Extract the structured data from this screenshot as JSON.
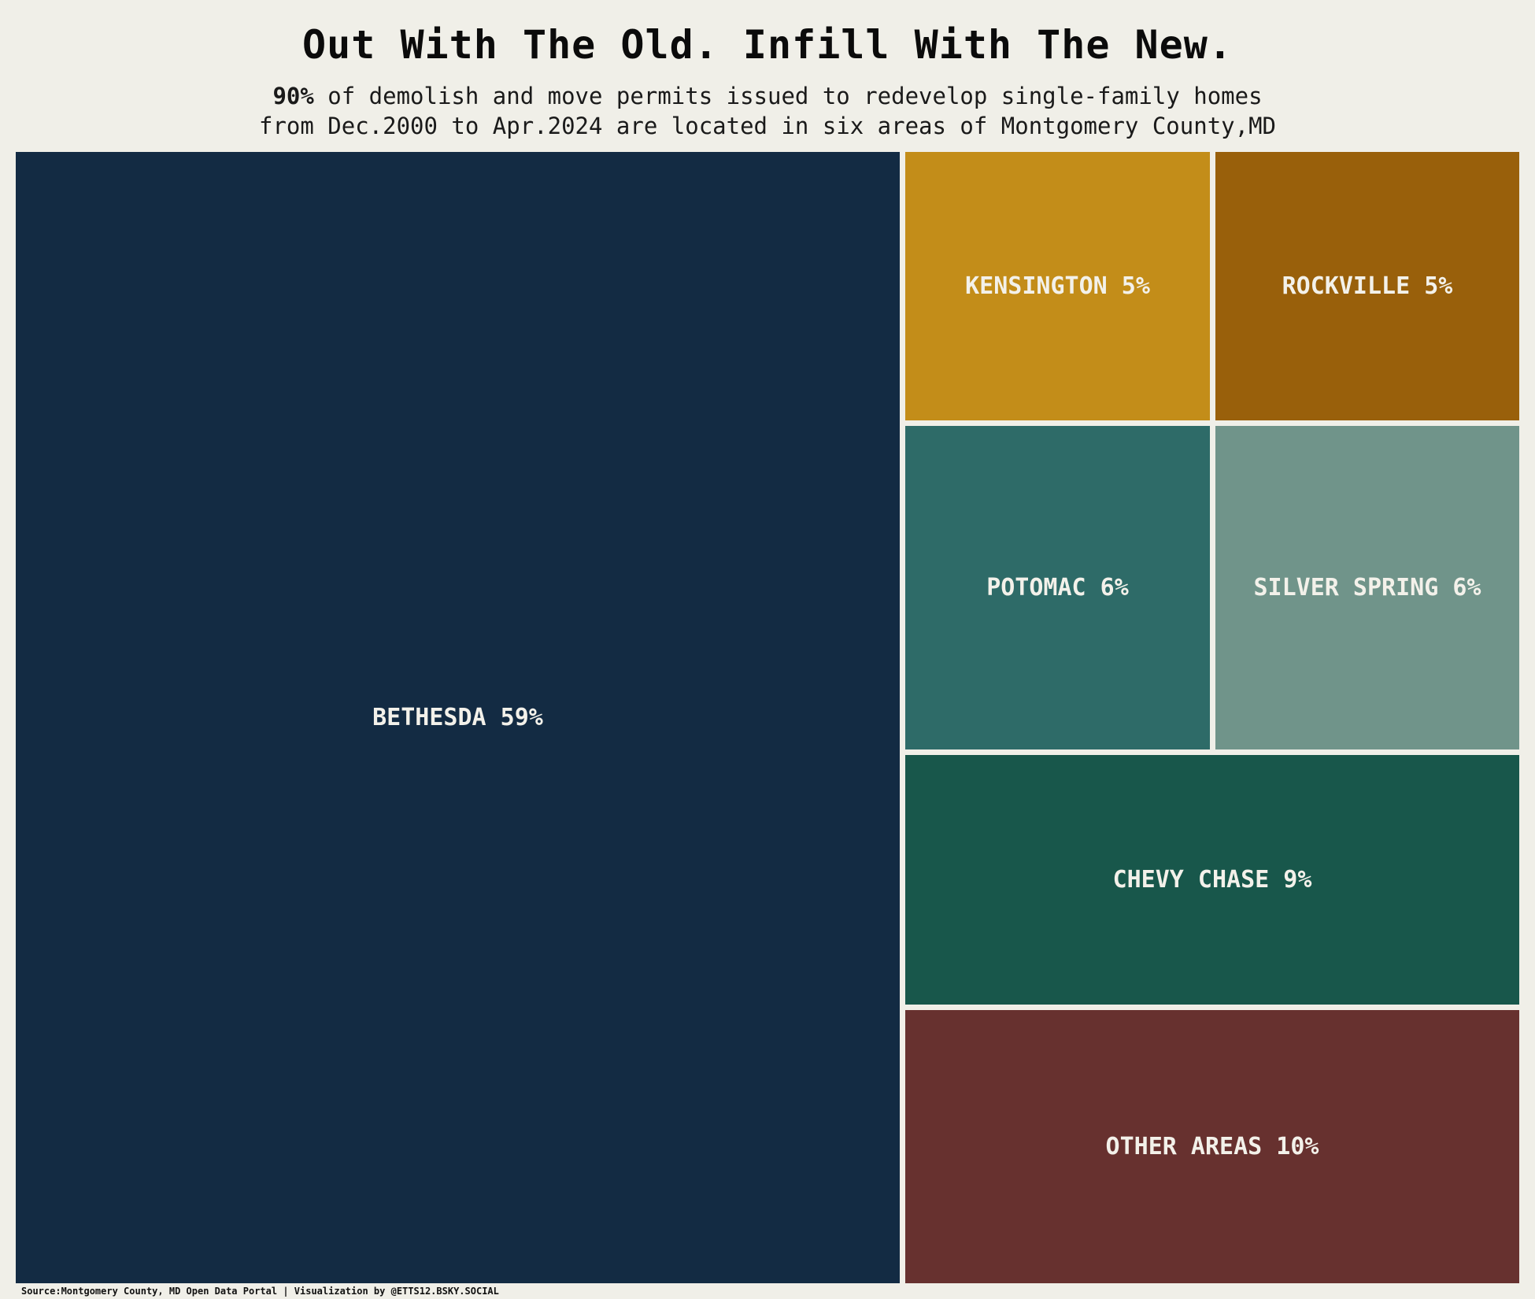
{
  "title": "Out With The Old. Infill With The New.",
  "subtitle": {
    "highlight": "90%",
    "line1_rest": " of demolish and move permits issued to redevelop single-family homes",
    "line2": "from Dec.2000 to Apr.2024 are located in six areas of Montgomery County,MD"
  },
  "caption": "Source:Montgomery County, MD Open Data Portal | Visualization by @ETTS12.BSKY.SOCIAL",
  "chart_data": {
    "type": "treemap",
    "value_unit": "percent of permits",
    "items": [
      {
        "name": "BETHESDA",
        "label": "BETHESDA 59%",
        "value": 59,
        "color": "#132b43"
      },
      {
        "name": "OTHER AREAS",
        "label": "OTHER AREAS 10%",
        "value": 10,
        "color": "#67312f"
      },
      {
        "name": "CHEVY CHASE",
        "label": "CHEVY CHASE 9%",
        "value": 9,
        "color": "#18574b"
      },
      {
        "name": "POTOMAC",
        "label": "POTOMAC 6%",
        "value": 6,
        "color": "#2e6b68"
      },
      {
        "name": "SILVER SPRING",
        "label": "SILVER SPRING 6%",
        "value": 6,
        "color": "#70948a"
      },
      {
        "name": "KENSINGTON",
        "label": "KENSINGTON 5%",
        "value": 5,
        "color": "#c38d19"
      },
      {
        "name": "ROCKVILLE",
        "label": "ROCKVILLE 5%",
        "value": 5,
        "color": "#99600b"
      }
    ]
  }
}
